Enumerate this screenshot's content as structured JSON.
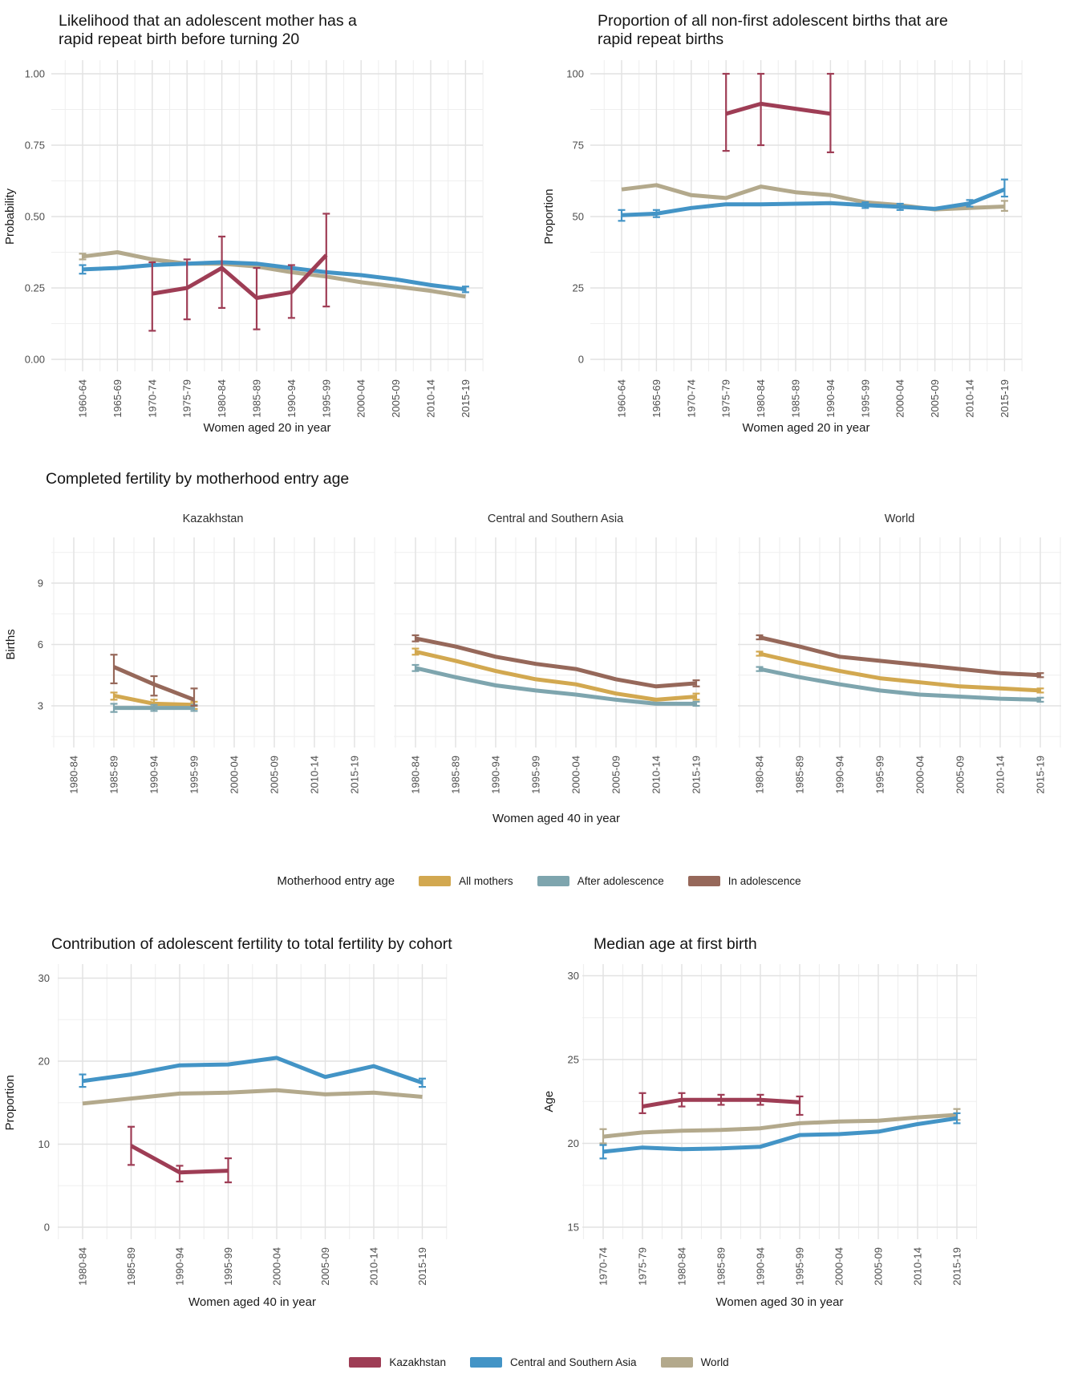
{
  "palette": {
    "kazakhstan": "#9e3d55",
    "central_southern_asia": "#4394c6",
    "world": "#b3a98c",
    "all_mothers": "#d2a850",
    "after_adolescence": "#7ea5ae",
    "in_adolescence": "#96685a",
    "grid_major": "#e2e2e2",
    "grid_minor": "#efefef",
    "tick_text": "#4d4d4d",
    "title_text": "#141414"
  },
  "legends": {
    "motherhood": {
      "title": "Motherhood entry age",
      "items": [
        {
          "label": "All mothers",
          "color_key": "all_mothers"
        },
        {
          "label": "After adolescence",
          "color_key": "after_adolescence"
        },
        {
          "label": "In adolescence",
          "color_key": "in_adolescence"
        }
      ]
    },
    "region": {
      "title": "",
      "items": [
        {
          "label": "Kazakhstan",
          "color_key": "kazakhstan"
        },
        {
          "label": "Central and Southern Asia",
          "color_key": "central_southern_asia"
        },
        {
          "label": "World",
          "color_key": "world"
        }
      ]
    }
  },
  "chart_data": [
    {
      "id": "tl",
      "type": "line",
      "title_lines": [
        "Likelihood that an adolescent mother has a",
        "rapid repeat birth before turning 20"
      ],
      "ylabel": "Probability",
      "xlabel": "Women aged 20 in year",
      "ylim": [
        0,
        1
      ],
      "grid": true,
      "legend_position": "bottom-shared",
      "categories": [
        "1960-64",
        "1965-69",
        "1970-74",
        "1975-79",
        "1980-84",
        "1985-89",
        "1990-94",
        "1995-99",
        "2000-04",
        "2005-09",
        "2010-14",
        "2015-19"
      ],
      "y_ticks": [
        {
          "v": 0,
          "label": "0.00"
        },
        {
          "v": 0.25,
          "label": "0.25"
        },
        {
          "v": 0.5,
          "label": "0.50"
        },
        {
          "v": 0.75,
          "label": "0.75"
        },
        {
          "v": 1,
          "label": "1.00"
        }
      ],
      "series": [
        {
          "name": "World",
          "color_key": "world",
          "values": [
            0.36,
            0.375,
            0.35,
            0.335,
            0.335,
            0.325,
            0.305,
            0.29,
            0.27,
            0.255,
            0.24,
            0.22
          ],
          "errors": {
            "0": [
              0.35,
              0.37
            ]
          }
        },
        {
          "name": "Central and Southern Asia",
          "color_key": "central_southern_asia",
          "values": [
            0.315,
            0.32,
            0.33,
            0.335,
            0.34,
            0.335,
            0.32,
            0.305,
            0.295,
            0.28,
            0.26,
            0.245
          ],
          "errors": {
            "0": [
              0.3,
              0.33
            ],
            "11": [
              0.235,
              0.255
            ]
          }
        },
        {
          "name": "Kazakhstan",
          "color_key": "kazakhstan",
          "values": [
            null,
            null,
            0.23,
            0.25,
            0.32,
            0.215,
            0.235,
            0.365,
            null,
            null,
            null,
            null
          ],
          "errors": {
            "2": [
              0.1,
              0.34
            ],
            "3": [
              0.14,
              0.35
            ],
            "4": [
              0.18,
              0.43
            ],
            "5": [
              0.105,
              0.32
            ],
            "6": [
              0.145,
              0.33
            ],
            "7": [
              0.185,
              0.51
            ]
          }
        }
      ]
    },
    {
      "id": "tr",
      "type": "line",
      "title_lines": [
        "Proportion of all non-first adolescent births that are",
        "rapid repeat births"
      ],
      "ylabel": "Proportion",
      "xlabel": "Women aged 20 in year",
      "ylim": [
        0,
        100
      ],
      "grid": true,
      "categories": [
        "1960-64",
        "1965-69",
        "1970-74",
        "1975-79",
        "1980-84",
        "1985-89",
        "1990-94",
        "1995-99",
        "2000-04",
        "2005-09",
        "2010-14",
        "2015-19"
      ],
      "y_ticks": [
        {
          "v": 0,
          "label": "0"
        },
        {
          "v": 25,
          "label": "25"
        },
        {
          "v": 50,
          "label": "50"
        },
        {
          "v": 75,
          "label": "75"
        },
        {
          "v": 100,
          "label": "100"
        }
      ],
      "series": [
        {
          "name": "World",
          "color_key": "world",
          "values": [
            59.5,
            61,
            57.5,
            56.5,
            60.5,
            58.5,
            57.5,
            55,
            54,
            52.5,
            53,
            53.5
          ],
          "errors": {
            "11": [
              52,
              55.5
            ]
          }
        },
        {
          "name": "Central and Southern Asia",
          "color_key": "central_southern_asia",
          "values": [
            50.5,
            51,
            53,
            54.3,
            54.3,
            54.5,
            54.7,
            54,
            53.4,
            52.7,
            54.6,
            59.5
          ],
          "errors": {
            "0": [
              48.5,
              52.3
            ],
            "1": [
              49.8,
              52.3
            ],
            "7": [
              53,
              55
            ],
            "8": [
              52.3,
              54.5
            ],
            "10": [
              53.5,
              55.8
            ],
            "11": [
              57,
              63
            ]
          }
        },
        {
          "name": "Kazakhstan",
          "color_key": "kazakhstan",
          "values": [
            null,
            null,
            null,
            86,
            89.5,
            null,
            86,
            null,
            null,
            null,
            null,
            null
          ],
          "errors": {
            "3": [
              73,
              100
            ],
            "4": [
              75,
              100
            ],
            "6": [
              72.5,
              100
            ]
          }
        }
      ]
    },
    {
      "id": "mid",
      "type": "line-faceted",
      "title_lines": [
        "Completed fertility by motherhood entry age"
      ],
      "ylabel": "Births",
      "xlabel": "Women aged 40 in year",
      "ylim": [
        1.5,
        10.5
      ],
      "grid": true,
      "legend": "motherhood",
      "categories": [
        "1980-84",
        "1985-89",
        "1990-94",
        "1995-99",
        "2000-04",
        "2005-09",
        "2010-14",
        "2015-19"
      ],
      "y_ticks": [
        {
          "v": 3,
          "label": "3"
        },
        {
          "v": 6,
          "label": "6"
        },
        {
          "v": 9,
          "label": "9"
        }
      ],
      "facets": [
        {
          "title": "Kazakhstan",
          "series": [
            {
              "name": "All mothers",
              "color_key": "all_mothers",
              "values": [
                null,
                3.5,
                3.1,
                3.05,
                null,
                null,
                null,
                null
              ],
              "errors": {
                "1": [
                  3.3,
                  3.65
                ],
                "2": [
                  2.95,
                  3.3
                ],
                "3": [
                  2.85,
                  3.2
                ]
              }
            },
            {
              "name": "After adolescence",
              "color_key": "after_adolescence",
              "values": [
                null,
                2.9,
                2.9,
                2.9,
                null,
                null,
                null,
                null
              ],
              "errors": {
                "1": [
                  2.7,
                  3.1
                ],
                "2": [
                  2.75,
                  3.05
                ],
                "3": [
                  2.75,
                  3.05
                ]
              }
            },
            {
              "name": "In adolescence",
              "color_key": "in_adolescence",
              "values": [
                null,
                4.9,
                4.05,
                3.3,
                null,
                null,
                null,
                null
              ],
              "errors": {
                "1": [
                  4.1,
                  5.5
                ],
                "2": [
                  3.5,
                  4.45
                ],
                "3": [
                  3.0,
                  3.85
                ]
              }
            }
          ]
        },
        {
          "title": "Central and Southern Asia",
          "series": [
            {
              "name": "All mothers",
              "color_key": "all_mothers",
              "values": [
                5.65,
                5.2,
                4.7,
                4.3,
                4.05,
                3.6,
                3.3,
                3.45
              ],
              "errors": {
                "0": [
                  5.5,
                  5.8
                ],
                "7": [
                  3.3,
                  3.6
                ]
              }
            },
            {
              "name": "After adolescence",
              "color_key": "after_adolescence",
              "values": [
                4.85,
                4.4,
                4.0,
                3.75,
                3.55,
                3.3,
                3.1,
                3.1
              ],
              "errors": {
                "0": [
                  4.7,
                  5.0
                ],
                "7": [
                  3.0,
                  3.2
                ]
              }
            },
            {
              "name": "In adolescence",
              "color_key": "in_adolescence",
              "values": [
                6.3,
                5.9,
                5.4,
                5.05,
                4.8,
                4.3,
                3.95,
                4.1
              ],
              "errors": {
                "0": [
                  6.15,
                  6.45
                ],
                "7": [
                  3.95,
                  4.25
                ]
              }
            }
          ]
        },
        {
          "title": "World",
          "series": [
            {
              "name": "All mothers",
              "color_key": "all_mothers",
              "values": [
                5.55,
                5.1,
                4.7,
                4.35,
                4.15,
                3.95,
                3.85,
                3.75
              ],
              "errors": {
                "0": [
                  5.45,
                  5.65
                ],
                "7": [
                  3.65,
                  3.85
                ]
              }
            },
            {
              "name": "After adolescence",
              "color_key": "after_adolescence",
              "values": [
                4.8,
                4.4,
                4.05,
                3.75,
                3.55,
                3.45,
                3.35,
                3.3
              ],
              "errors": {
                "0": [
                  4.7,
                  4.9
                ],
                "7": [
                  3.2,
                  3.4
                ]
              }
            },
            {
              "name": "In adolescence",
              "color_key": "in_adolescence",
              "values": [
                6.35,
                5.9,
                5.4,
                5.2,
                5.0,
                4.8,
                4.6,
                4.5
              ],
              "errors": {
                "0": [
                  6.25,
                  6.45
                ],
                "7": [
                  4.4,
                  4.6
                ]
              }
            }
          ]
        }
      ]
    },
    {
      "id": "bl",
      "type": "line",
      "title_lines": [
        "Contribution of adolescent fertility to total fertility by cohort"
      ],
      "ylabel": "Proportion",
      "xlabel": "Women aged 40 in year",
      "ylim": [
        0,
        30
      ],
      "grid": true,
      "categories": [
        "1980-84",
        "1985-89",
        "1990-94",
        "1995-99",
        "2000-04",
        "2005-09",
        "2010-14",
        "2015-19"
      ],
      "y_ticks": [
        {
          "v": 0,
          "label": "0"
        },
        {
          "v": 10,
          "label": "10"
        },
        {
          "v": 20,
          "label": "20"
        },
        {
          "v": 30,
          "label": "30"
        }
      ],
      "series": [
        {
          "name": "World",
          "color_key": "world",
          "values": [
            14.9,
            15.5,
            16.1,
            16.2,
            16.5,
            16.0,
            16.2,
            15.7
          ],
          "errors": {}
        },
        {
          "name": "Central and Southern Asia",
          "color_key": "central_southern_asia",
          "values": [
            17.6,
            18.4,
            19.5,
            19.6,
            20.4,
            18.1,
            19.4,
            17.4
          ],
          "errors": {
            "0": [
              16.9,
              18.4
            ],
            "7": [
              16.9,
              17.9
            ]
          }
        },
        {
          "name": "Kazakhstan",
          "color_key": "kazakhstan",
          "values": [
            null,
            9.8,
            6.6,
            6.8,
            null,
            null,
            null,
            null
          ],
          "errors": {
            "1": [
              7.5,
              12.1
            ],
            "2": [
              5.5,
              7.4
            ],
            "3": [
              5.4,
              8.3
            ]
          }
        }
      ]
    },
    {
      "id": "br",
      "type": "line",
      "title_lines": [
        "Median age at first birth"
      ],
      "ylabel": "Age",
      "xlabel": "Women aged 30 in year",
      "ylim": [
        15,
        30
      ],
      "grid": true,
      "categories": [
        "1970-74",
        "1975-79",
        "1980-84",
        "1985-89",
        "1990-94",
        "1995-99",
        "2000-04",
        "2005-09",
        "2010-14",
        "2015-19"
      ],
      "y_ticks": [
        {
          "v": 15,
          "label": "15"
        },
        {
          "v": 20,
          "label": "20"
        },
        {
          "v": 25,
          "label": "25"
        },
        {
          "v": 30,
          "label": "30"
        }
      ],
      "series": [
        {
          "name": "World",
          "color_key": "world",
          "values": [
            20.4,
            20.65,
            20.75,
            20.8,
            20.9,
            21.2,
            21.3,
            21.35,
            21.55,
            21.7
          ],
          "errors": {
            "0": [
              20.0,
              20.85
            ],
            "9": [
              21.4,
              22.05
            ]
          }
        },
        {
          "name": "Central and Southern Asia",
          "color_key": "central_southern_asia",
          "values": [
            19.5,
            19.75,
            19.65,
            19.7,
            19.8,
            20.5,
            20.55,
            20.7,
            21.15,
            21.5
          ],
          "errors": {
            "0": [
              19.1,
              19.9
            ],
            "9": [
              21.2,
              21.8
            ]
          }
        },
        {
          "name": "Kazakhstan",
          "color_key": "kazakhstan",
          "values": [
            null,
            22.2,
            22.6,
            22.6,
            22.6,
            22.45,
            null,
            null,
            null,
            null
          ],
          "errors": {
            "1": [
              21.8,
              23.0
            ],
            "2": [
              22.2,
              23.0
            ],
            "3": [
              22.3,
              22.9
            ],
            "4": [
              22.3,
              22.9
            ],
            "5": [
              21.7,
              22.8
            ]
          }
        }
      ]
    }
  ]
}
